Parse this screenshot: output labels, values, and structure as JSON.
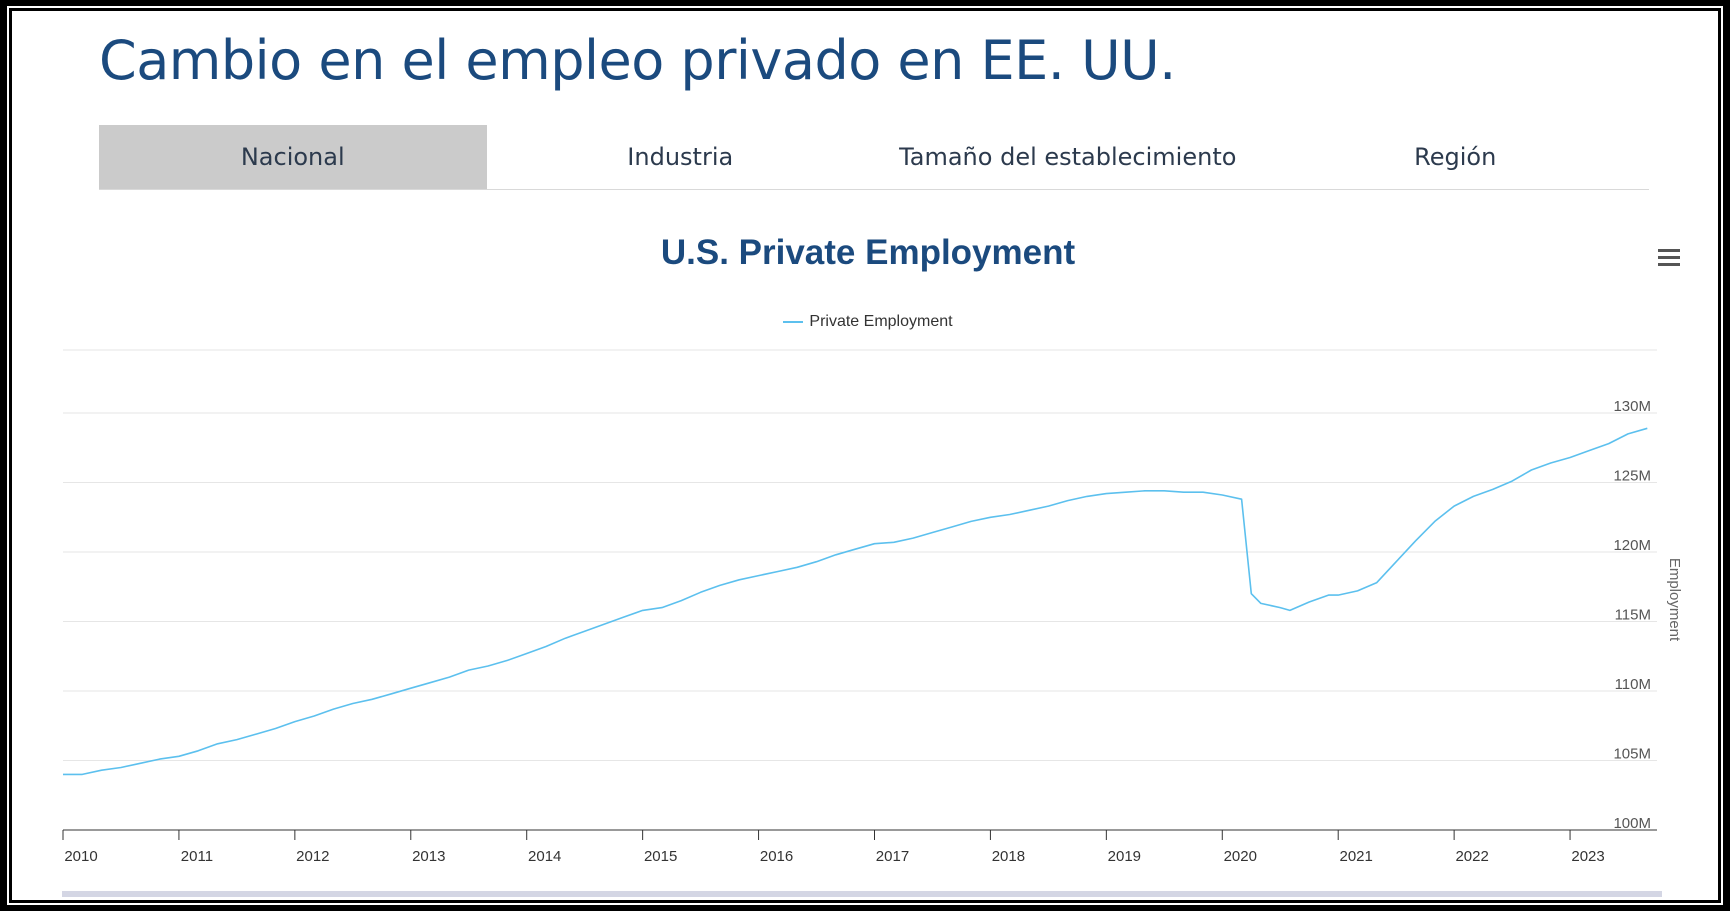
{
  "page": {
    "title": "Cambio en el empleo privado en EE. UU."
  },
  "tabs": [
    {
      "label": "Nacional",
      "active": true
    },
    {
      "label": "Industria",
      "active": false
    },
    {
      "label": "Tamaño del establecimiento",
      "active": false
    },
    {
      "label": "Región",
      "active": false
    }
  ],
  "menu_icon": "hamburger-menu-icon",
  "colors": {
    "title": "#1b4a7e",
    "series": "#5cc0ee",
    "active_tab": "#cbcbcb",
    "grid": "#e6e6e6"
  },
  "chart_data": {
    "type": "line",
    "title": "U.S. Private Employment",
    "ylabel": "Employment",
    "xlabel": "",
    "ylim": [
      100,
      130
    ],
    "y_ticks": [
      "100M",
      "105M",
      "110M",
      "115M",
      "120M",
      "125M",
      "130M"
    ],
    "x_ticks": [
      "2010",
      "2011",
      "2012",
      "2013",
      "2014",
      "2015",
      "2016",
      "2017",
      "2018",
      "2019",
      "2020",
      "2021",
      "2022",
      "2023"
    ],
    "y_axis_position": "right",
    "grid": true,
    "legend": "top-center",
    "series": [
      {
        "name": "Private Employment",
        "points": [
          [
            "2010-01",
            104.0
          ],
          [
            "2010-03",
            104.0
          ],
          [
            "2010-05",
            104.3
          ],
          [
            "2010-07",
            104.5
          ],
          [
            "2010-09",
            104.8
          ],
          [
            "2010-11",
            105.1
          ],
          [
            "2011-01",
            105.3
          ],
          [
            "2011-03",
            105.7
          ],
          [
            "2011-05",
            106.2
          ],
          [
            "2011-07",
            106.5
          ],
          [
            "2011-09",
            106.9
          ],
          [
            "2011-11",
            107.3
          ],
          [
            "2012-01",
            107.8
          ],
          [
            "2012-03",
            108.2
          ],
          [
            "2012-05",
            108.7
          ],
          [
            "2012-07",
            109.1
          ],
          [
            "2012-09",
            109.4
          ],
          [
            "2012-11",
            109.8
          ],
          [
            "2013-01",
            110.2
          ],
          [
            "2013-03",
            110.6
          ],
          [
            "2013-05",
            111.0
          ],
          [
            "2013-07",
            111.5
          ],
          [
            "2013-09",
            111.8
          ],
          [
            "2013-11",
            112.2
          ],
          [
            "2014-01",
            112.7
          ],
          [
            "2014-03",
            113.2
          ],
          [
            "2014-05",
            113.8
          ],
          [
            "2014-07",
            114.3
          ],
          [
            "2014-09",
            114.8
          ],
          [
            "2014-11",
            115.3
          ],
          [
            "2015-01",
            115.8
          ],
          [
            "2015-03",
            116.0
          ],
          [
            "2015-05",
            116.5
          ],
          [
            "2015-07",
            117.1
          ],
          [
            "2015-09",
            117.6
          ],
          [
            "2015-11",
            118.0
          ],
          [
            "2016-01",
            118.3
          ],
          [
            "2016-03",
            118.6
          ],
          [
            "2016-05",
            118.9
          ],
          [
            "2016-07",
            119.3
          ],
          [
            "2016-09",
            119.8
          ],
          [
            "2016-11",
            120.2
          ],
          [
            "2017-01",
            120.6
          ],
          [
            "2017-03",
            120.7
          ],
          [
            "2017-05",
            121.0
          ],
          [
            "2017-07",
            121.4
          ],
          [
            "2017-09",
            121.8
          ],
          [
            "2017-11",
            122.2
          ],
          [
            "2018-01",
            122.5
          ],
          [
            "2018-03",
            122.7
          ],
          [
            "2018-05",
            123.0
          ],
          [
            "2018-07",
            123.3
          ],
          [
            "2018-09",
            123.7
          ],
          [
            "2018-11",
            124.0
          ],
          [
            "2019-01",
            124.2
          ],
          [
            "2019-03",
            124.3
          ],
          [
            "2019-05",
            124.4
          ],
          [
            "2019-07",
            124.4
          ],
          [
            "2019-09",
            124.3
          ],
          [
            "2019-11",
            124.3
          ],
          [
            "2020-01",
            124.1
          ],
          [
            "2020-03",
            123.8
          ],
          [
            "2020-04",
            117.0
          ],
          [
            "2020-05",
            116.3
          ],
          [
            "2020-07",
            116.0
          ],
          [
            "2020-08",
            115.8
          ],
          [
            "2020-10",
            116.4
          ],
          [
            "2020-12",
            116.9
          ],
          [
            "2021-01",
            116.9
          ],
          [
            "2021-03",
            117.2
          ],
          [
            "2021-05",
            117.8
          ],
          [
            "2021-07",
            119.3
          ],
          [
            "2021-09",
            120.8
          ],
          [
            "2021-11",
            122.2
          ],
          [
            "2022-01",
            123.3
          ],
          [
            "2022-03",
            124.0
          ],
          [
            "2022-05",
            124.5
          ],
          [
            "2022-07",
            125.1
          ],
          [
            "2022-09",
            125.9
          ],
          [
            "2022-11",
            126.4
          ],
          [
            "2023-01",
            126.8
          ],
          [
            "2023-03",
            127.3
          ],
          [
            "2023-05",
            127.8
          ],
          [
            "2023-07",
            128.5
          ],
          [
            "2023-09",
            128.9
          ]
        ]
      }
    ]
  }
}
